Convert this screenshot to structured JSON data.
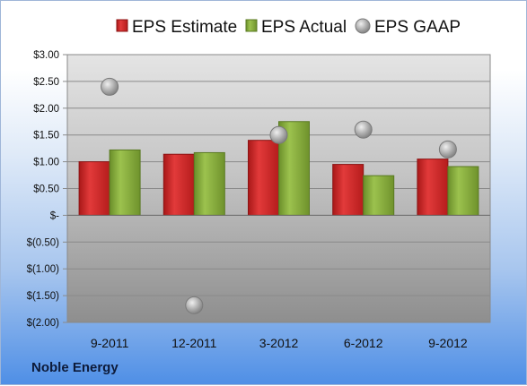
{
  "company": "Noble Energy",
  "chart_data": {
    "type": "bar",
    "categories": [
      "9-2011",
      "12-2011",
      "3-2012",
      "6-2012",
      "9-2012"
    ],
    "series": [
      {
        "name": "EPS Estimate",
        "kind": "bar",
        "color": "#d42a2a",
        "values": [
          1.0,
          1.14,
          1.4,
          0.95,
          1.05
        ]
      },
      {
        "name": "EPS Actual",
        "kind": "bar",
        "color": "#86ad3a",
        "values": [
          1.22,
          1.17,
          1.75,
          0.74,
          0.91
        ]
      },
      {
        "name": "EPS GAAP",
        "kind": "scatter",
        "color": "#a9a9a9",
        "values": [
          2.4,
          -1.68,
          1.5,
          1.6,
          1.23
        ]
      }
    ],
    "yticks": [
      3.0,
      2.5,
      2.0,
      1.5,
      1.0,
      0.5,
      0,
      -0.5,
      -1.0,
      -1.5,
      -2.0
    ],
    "ytick_labels": [
      "$3.00",
      "$2.50",
      "$2.00",
      "$1.50",
      "$1.00",
      "$0.50",
      "$-",
      "$(0.50)",
      "$(1.00)",
      "$(1.50)",
      "$(2.00)"
    ],
    "ylim": [
      -2.0,
      3.0
    ],
    "grid": true,
    "legend_position": "top"
  }
}
